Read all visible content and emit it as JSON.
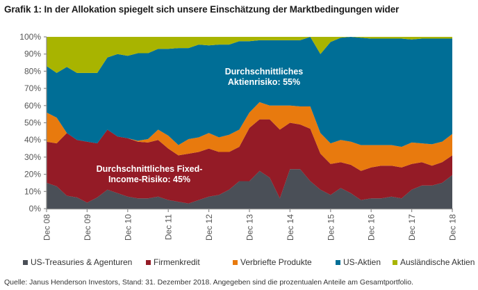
{
  "title": "Grafik 1: In der Allokation spiegelt sich unsere Einschätzung der Marktbedingungen wider",
  "source": "Quelle: Janus Henderson Investors, Stand: 31. Dezember 2018. Angegeben sind die prozentualen Anteile am Gesamtportfolio.",
  "chart_data": {
    "type": "area",
    "stacked": true,
    "title": "Grafik 1: In der Allokation spiegelt sich unsere Einschätzung der Marktbedingungen wider",
    "xlabel": "",
    "ylabel": "",
    "ylim": [
      0,
      100
    ],
    "yticks": [
      "0%",
      "10%",
      "20%",
      "30%",
      "40%",
      "50%",
      "60%",
      "70%",
      "80%",
      "90%",
      "100%"
    ],
    "xticks": [
      "Dec 08",
      "Dec 09",
      "Dec 10",
      "Dec 11",
      "Dec 12",
      "Dec 13",
      "Dec 14",
      "Dec 15",
      "Dec 16",
      "Dec 17",
      "Dec 18"
    ],
    "x_frequency": "quarterly",
    "legend_position": "bottom",
    "annotations": [
      {
        "text_line1": "Durchschnittliches",
        "text_line2": "Aktienrisiko: 55%",
        "over_series": "US-Aktien"
      },
      {
        "text_line1": "Durchschnittliches Fixed-",
        "text_line2": "Income-Risiko: 45%",
        "over_series": "Firmenkredit"
      }
    ],
    "series": [
      {
        "name": "US-Treasuries & Agenturen",
        "color": "#4a4f57",
        "values": [
          15,
          13,
          7.5,
          6.5,
          3.5,
          6.5,
          11,
          9,
          7,
          6,
          6,
          7,
          5,
          4,
          3,
          5,
          7,
          8,
          11,
          16,
          16,
          22,
          18,
          6,
          23,
          23,
          16,
          11,
          8,
          12,
          9,
          5,
          6,
          6,
          7,
          6,
          11,
          13.5,
          13.5,
          15,
          19.5
        ]
      },
      {
        "name": "Firmenkredit",
        "color": "#941b26",
        "values": [
          24,
          25,
          36.5,
          33.5,
          35.5,
          31.5,
          35,
          33,
          34,
          33,
          32.5,
          33,
          30,
          27,
          29,
          28,
          28,
          25,
          22,
          20,
          31,
          30,
          34,
          40,
          27,
          26,
          30.5,
          21,
          18,
          15,
          16.5,
          17,
          18,
          19,
          18,
          18,
          15,
          13.5,
          11.5,
          12,
          11.5
        ]
      },
      {
        "name": "Verbriefte Produkte",
        "color": "#e87a0e",
        "values": [
          17,
          15,
          0,
          0,
          0,
          0,
          0,
          0,
          0,
          0.5,
          2,
          6,
          7.5,
          6,
          8.5,
          8.5,
          9,
          8.5,
          10,
          10,
          9,
          10,
          8,
          14,
          10,
          10.5,
          13,
          12,
          12,
          13,
          13.5,
          15,
          13,
          12,
          12,
          12,
          12.5,
          11,
          12.5,
          12,
          12.5
        ]
      },
      {
        "name": "US-Aktien",
        "color": "#006e96",
        "values": [
          27,
          26,
          38.5,
          39,
          40,
          41,
          42,
          48,
          48,
          51,
          50,
          47,
          50.5,
          56.5,
          53,
          54,
          51,
          54,
          52.5,
          51.5,
          41.5,
          36,
          38,
          38,
          38,
          38.5,
          40.5,
          46,
          59,
          59.5,
          61,
          62.5,
          62,
          62,
          62,
          63,
          60,
          61,
          61.5,
          60,
          55.5
        ]
      },
      {
        "name": "Ausländische Aktien",
        "color": "#a8b400",
        "values": [
          17,
          18,
          20,
          21,
          21,
          21,
          12,
          12,
          10,
          9.5,
          9.5,
          7,
          7,
          7,
          6.5,
          4.5,
          5,
          4.5,
          4.5,
          2.5,
          2.5,
          2,
          2,
          2,
          2,
          2,
          0,
          0,
          3,
          0.5,
          0,
          0.5,
          1,
          1,
          1,
          1,
          1.5,
          1,
          1,
          1,
          1
        ]
      }
    ]
  },
  "legend": [
    {
      "label": "US-Treasuries & Agenturen",
      "color": "#4a4f57"
    },
    {
      "label": "Firmenkredit",
      "color": "#941b26"
    },
    {
      "label": "Verbriefte Produkte",
      "color": "#e87a0e"
    },
    {
      "label": "US-Aktien",
      "color": "#006e96"
    },
    {
      "label": "Ausländische Aktien",
      "color": "#a8b400"
    }
  ]
}
